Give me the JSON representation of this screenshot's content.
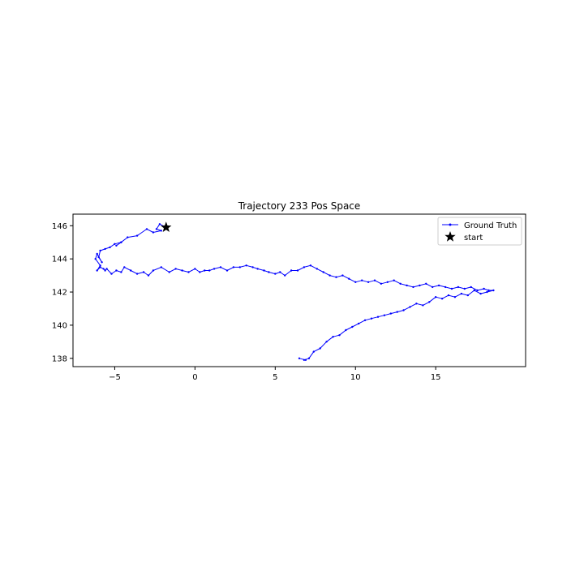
{
  "chart_data": {
    "type": "line",
    "title": "Trajectory 233 Pos Space",
    "xlabel": "",
    "ylabel": "",
    "xlim": [
      -7.6,
      20.6
    ],
    "ylim": [
      137.5,
      146.7
    ],
    "x_ticks": [
      -5,
      0,
      5,
      10,
      15
    ],
    "y_ticks": [
      138,
      140,
      142,
      144,
      146
    ],
    "grid": false,
    "legend_position": "upper right",
    "colors": {
      "series": "#0000ff",
      "marker": "#000000"
    },
    "series": [
      {
        "name": "Ground Truth",
        "color": "#0000ff",
        "x": [
          -1.8,
          -2.2,
          -2.4,
          -2.1,
          -2.6,
          -3.0,
          -3.6,
          -4.2,
          -4.6,
          -4.9,
          -4.6,
          -5.0,
          -5.3,
          -5.6,
          -5.9,
          -6.0,
          -5.8,
          -6.1,
          -6.2,
          -5.9,
          -6.1,
          -5.9,
          -5.7,
          -5.6,
          -5.5,
          -5.2,
          -4.9,
          -4.6,
          -4.4,
          -4.0,
          -3.6,
          -3.2,
          -2.9,
          -2.6,
          -2.1,
          -1.6,
          -1.2,
          -0.8,
          -0.4,
          0.0,
          0.3,
          0.6,
          0.9,
          1.2,
          1.6,
          2.0,
          2.4,
          2.8,
          3.2,
          3.6,
          3.9,
          4.3,
          4.6,
          5.0,
          5.3,
          5.6,
          6.0,
          6.4,
          6.8,
          7.2,
          7.6,
          8.0,
          8.4,
          8.8,
          9.2,
          9.6,
          10.0,
          10.4,
          10.8,
          11.2,
          11.6,
          12.0,
          12.4,
          12.8,
          13.2,
          13.6,
          14.0,
          14.4,
          14.8,
          15.2,
          15.6,
          16.0,
          16.4,
          16.8,
          17.2,
          17.6,
          18.0,
          18.3,
          18.6,
          18.2,
          17.8,
          17.4,
          17.0,
          16.6,
          16.2,
          15.8,
          15.4,
          15.0,
          14.6,
          14.2,
          13.8,
          13.4,
          13.0,
          12.6,
          12.2,
          11.8,
          11.4,
          11.0,
          10.6,
          10.2,
          9.8,
          9.4,
          9.0,
          8.6,
          8.2,
          7.8,
          7.4,
          7.1,
          6.8,
          6.9,
          6.5
        ],
        "y": [
          145.9,
          146.1,
          145.8,
          145.7,
          145.6,
          145.8,
          145.4,
          145.3,
          145.0,
          144.8,
          145.0,
          144.9,
          144.7,
          144.6,
          144.5,
          144.1,
          143.8,
          144.3,
          144.0,
          143.6,
          143.3,
          143.5,
          143.4,
          143.3,
          143.4,
          143.1,
          143.3,
          143.2,
          143.5,
          143.3,
          143.1,
          143.2,
          143.0,
          143.3,
          143.5,
          143.2,
          143.4,
          143.3,
          143.2,
          143.4,
          143.2,
          143.3,
          143.3,
          143.4,
          143.5,
          143.3,
          143.5,
          143.5,
          143.6,
          143.5,
          143.4,
          143.3,
          143.2,
          143.1,
          143.2,
          143.0,
          143.3,
          143.3,
          143.5,
          143.6,
          143.4,
          143.2,
          143.0,
          142.9,
          143.0,
          142.8,
          142.6,
          142.7,
          142.6,
          142.7,
          142.5,
          142.6,
          142.7,
          142.5,
          142.4,
          142.3,
          142.4,
          142.5,
          142.3,
          142.4,
          142.3,
          142.2,
          142.3,
          142.2,
          142.3,
          142.1,
          142.2,
          142.1,
          142.1,
          142.0,
          141.9,
          142.1,
          141.8,
          141.9,
          141.7,
          141.8,
          141.6,
          141.7,
          141.4,
          141.2,
          141.3,
          141.1,
          140.9,
          140.8,
          140.7,
          140.6,
          140.5,
          140.4,
          140.3,
          140.1,
          139.9,
          139.7,
          139.4,
          139.3,
          139.0,
          138.6,
          138.4,
          138.0,
          137.9,
          137.9,
          138.0
        ]
      },
      {
        "name": "start",
        "color": "#000000",
        "marker": "star",
        "x": [
          -1.8
        ],
        "y": [
          145.9
        ]
      }
    ]
  }
}
